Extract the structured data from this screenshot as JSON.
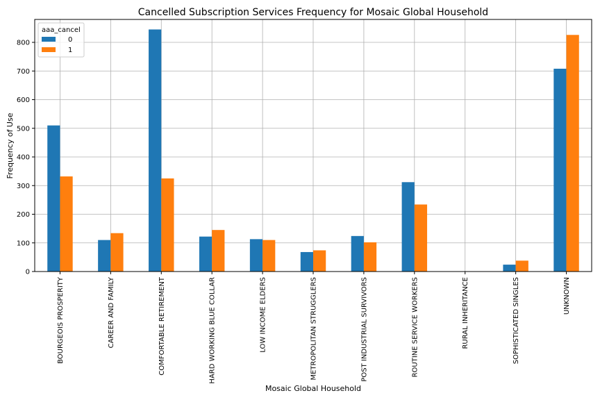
{
  "chart_data": {
    "type": "bar",
    "title": "Cancelled Subscription Services Frequency for Mosaic Global Household",
    "xlabel": "Mosaic Global Household",
    "ylabel": "Frequency of Use",
    "ylim": [
      0,
      880
    ],
    "yticks": [
      0,
      100,
      200,
      300,
      400,
      500,
      600,
      700,
      800
    ],
    "grid": true,
    "legend": {
      "title": "aaa_cancel",
      "placement": "top-left"
    },
    "categories": [
      "BOURGEOIS PROSPERITY",
      "CAREER AND FAMILY",
      "COMFORTABLE RETIREMENT",
      "HARD WORKING BLUE COLLAR",
      "LOW INCOME ELDERS",
      "METROPOLITAN STRUGGLERS",
      "POST INDUSTRIAL SURVIVORS",
      "ROUTINE SERVICE WORKERS",
      "RURAL INHERITANCE",
      "SOPHISTICATED SINGLES",
      "UNKNOWN"
    ],
    "series": [
      {
        "name": "0",
        "color": "#1f77b4",
        "values": [
          510,
          110,
          845,
          122,
          113,
          68,
          124,
          312,
          0,
          24,
          708
        ]
      },
      {
        "name": "1",
        "color": "#ff7f0e",
        "values": [
          332,
          134,
          325,
          145,
          110,
          74,
          102,
          234,
          0,
          38,
          826
        ]
      }
    ]
  }
}
